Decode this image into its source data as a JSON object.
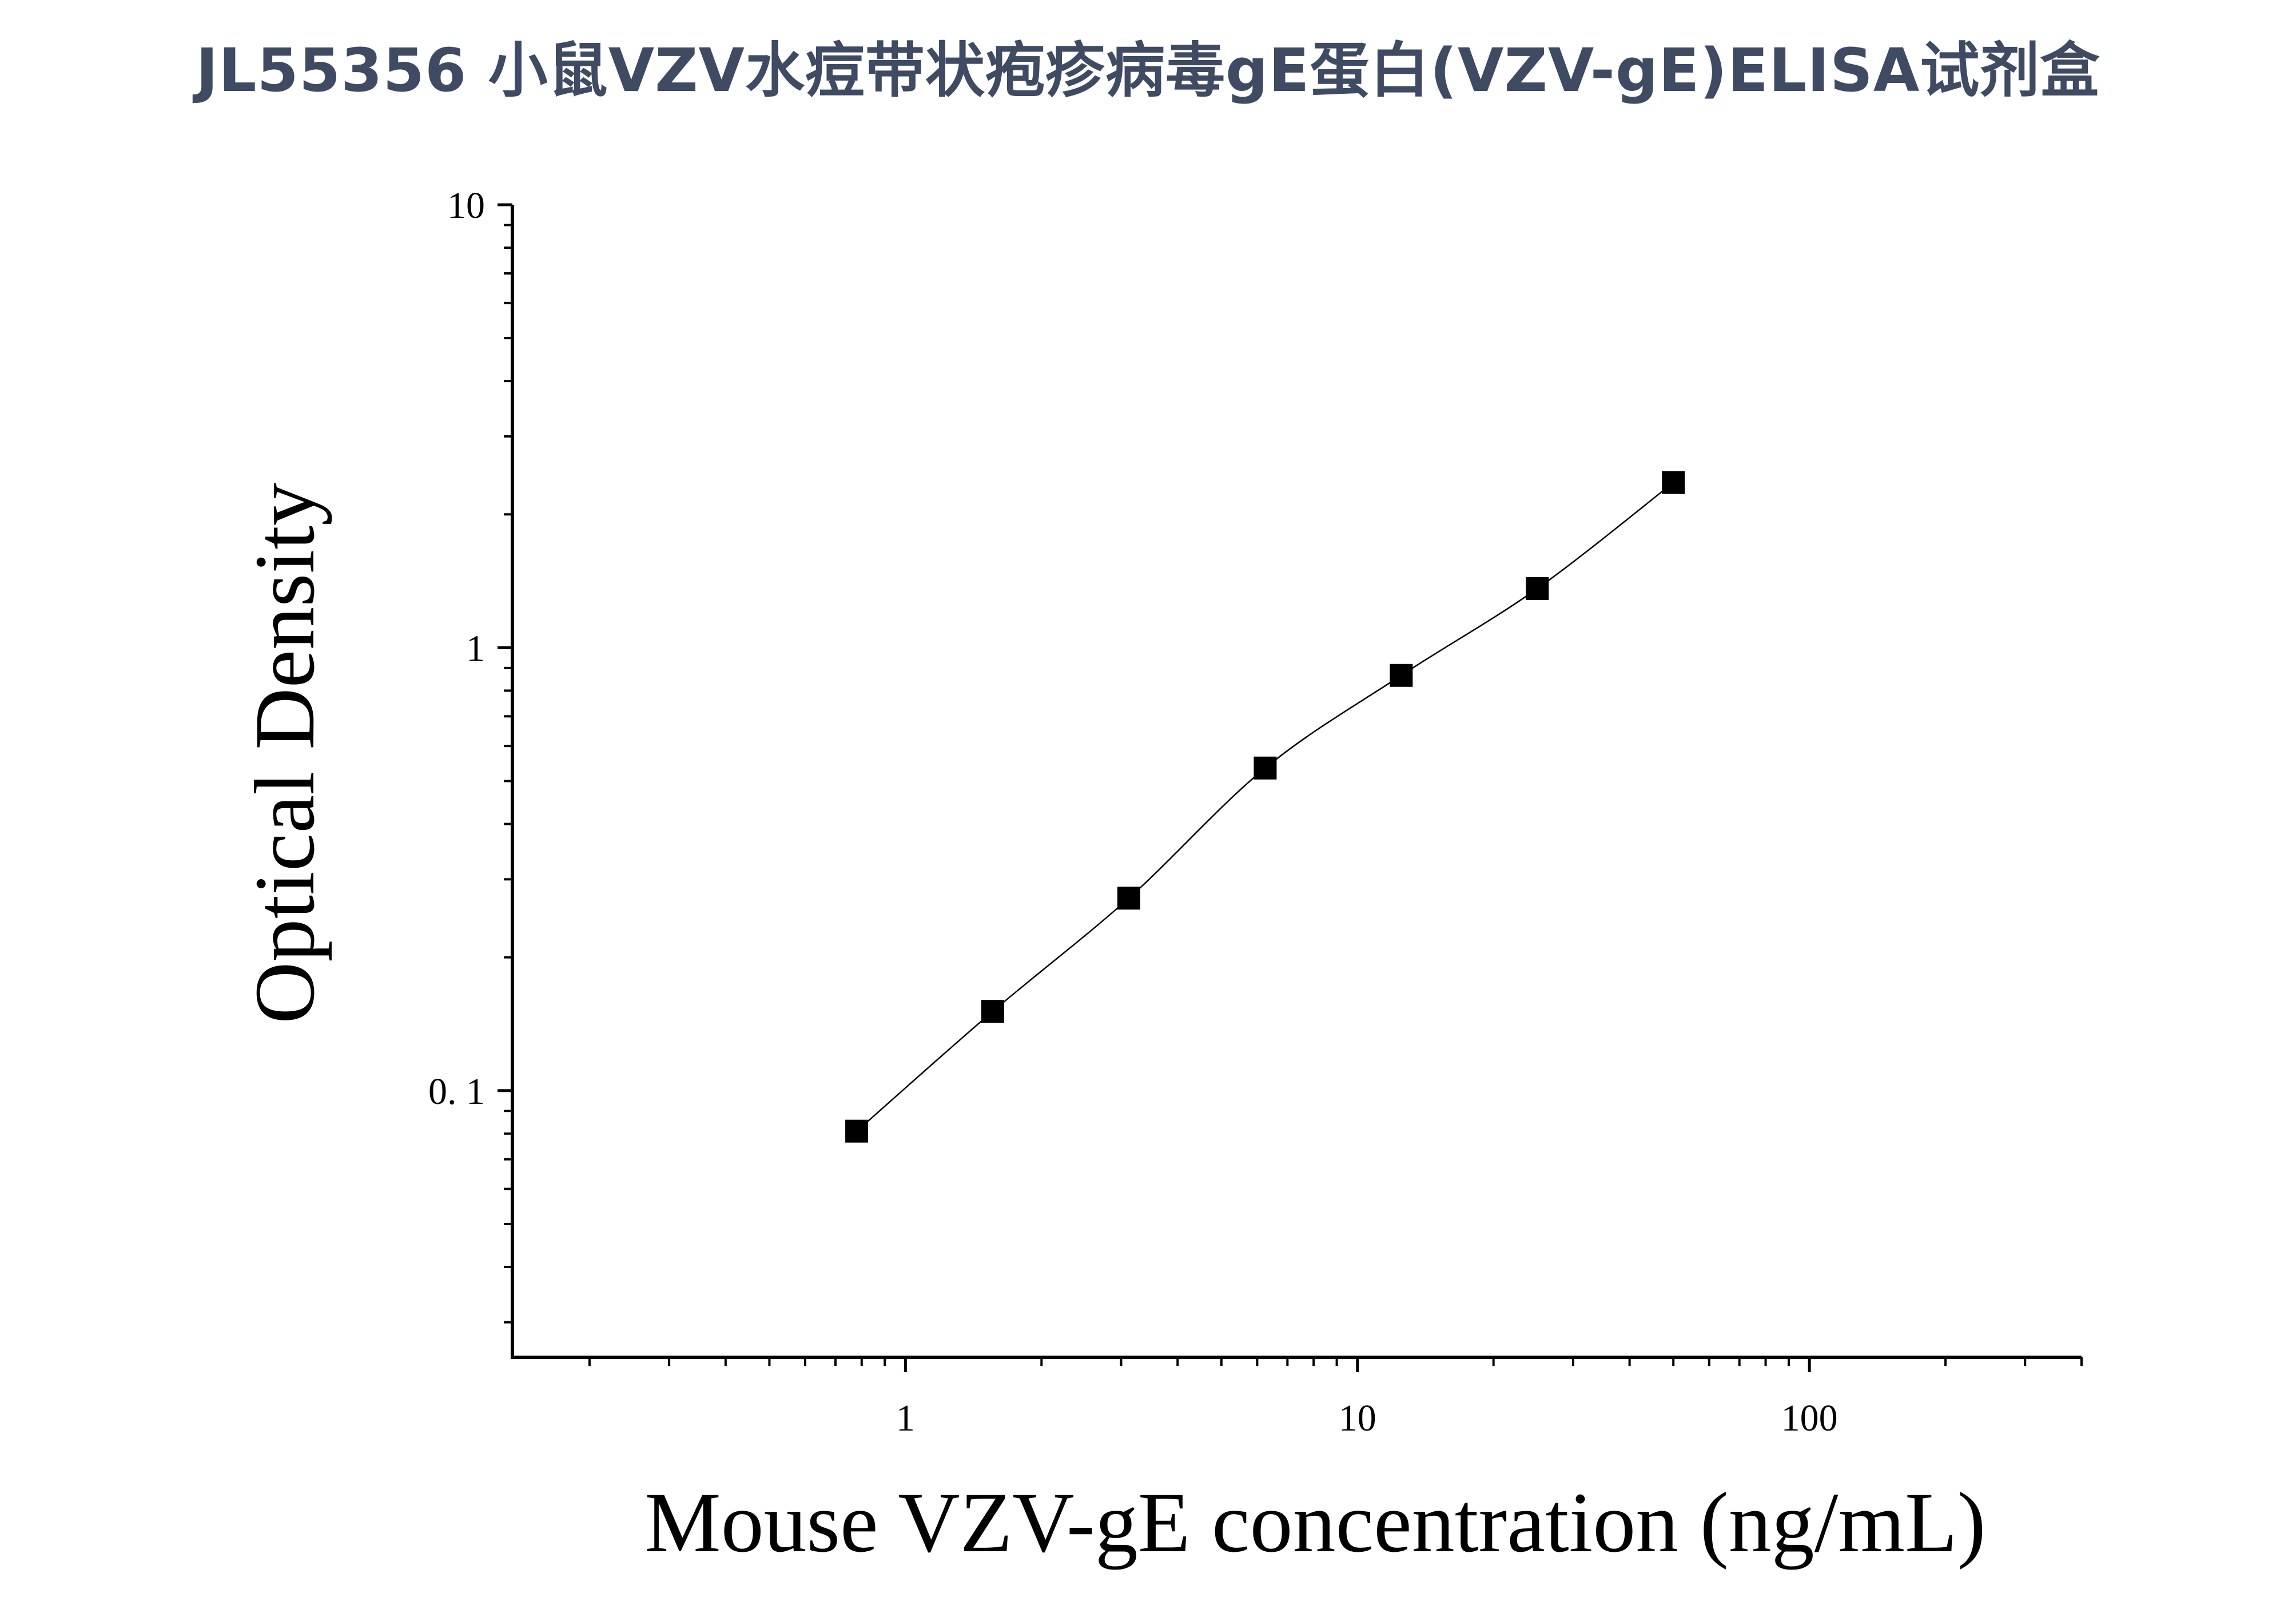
{
  "title": "JL55356 小鼠VZV水痘带状疱疹病毒gE蛋白(VZV-gE)ELISA试剂盒",
  "chart_data": {
    "type": "scatter",
    "xlabel": "Mouse VZV-gE concentration (ng/mL)",
    "ylabel": "Optical Density",
    "xscale": "log",
    "yscale": "log",
    "xlim": [
      0.135,
      400
    ],
    "ylim": [
      0.025,
      10
    ],
    "xticks": [
      1,
      10,
      100
    ],
    "xtick_labels": [
      "1",
      "10",
      "100"
    ],
    "yticks": [
      0.1,
      1,
      10
    ],
    "ytick_labels": [
      "0. 1",
      "1",
      "10"
    ],
    "grid": false,
    "legend": "none",
    "fit_line": true,
    "series": [
      {
        "marker": "square",
        "color": "#000000",
        "x": [
          0.78,
          1.56,
          3.12,
          6.25,
          12.5,
          25,
          50
        ],
        "y": [
          0.081,
          0.151,
          0.272,
          0.535,
          0.866,
          1.36,
          2.36
        ]
      }
    ]
  }
}
